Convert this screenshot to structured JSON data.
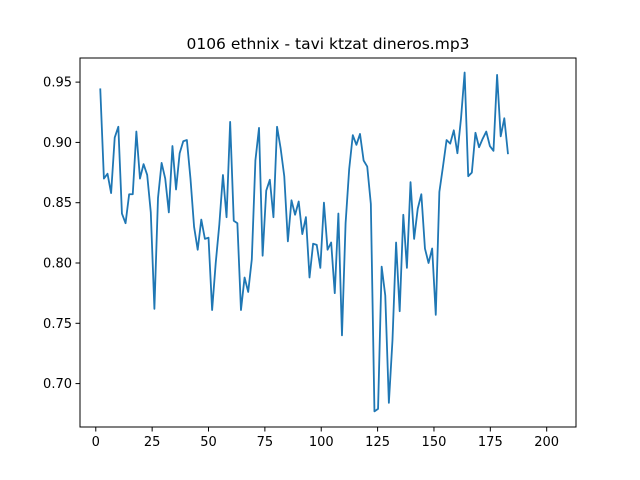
{
  "chart_data": {
    "type": "line",
    "title": "0106 ethnix - tavi ktzat dineros.mp3",
    "xlabel": "",
    "ylabel": "",
    "xlim": [
      -7,
      213
    ],
    "ylim": [
      0.664,
      0.97
    ],
    "grid": false,
    "x_ticks": [
      0,
      25,
      50,
      75,
      100,
      125,
      150,
      175,
      200
    ],
    "y_ticks": [
      0.7,
      0.75,
      0.8,
      0.85,
      0.9,
      0.95
    ],
    "x_tick_labels": [
      "0",
      "25",
      "50",
      "75",
      "100",
      "125",
      "150",
      "175",
      "200"
    ],
    "y_tick_labels": [
      "0.70",
      "0.75",
      "0.80",
      "0.85",
      "0.90",
      "0.95"
    ],
    "series": [
      {
        "color": "#1f77b4",
        "x_start": 2,
        "x_step": 1.6,
        "values": [
          0.944,
          0.87,
          0.874,
          0.858,
          0.904,
          0.913,
          0.841,
          0.833,
          0.857,
          0.857,
          0.909,
          0.87,
          0.882,
          0.873,
          0.842,
          0.762,
          0.854,
          0.883,
          0.87,
          0.842,
          0.897,
          0.861,
          0.891,
          0.901,
          0.902,
          0.87,
          0.83,
          0.811,
          0.836,
          0.82,
          0.821,
          0.761,
          0.8,
          0.832,
          0.873,
          0.838,
          0.917,
          0.835,
          0.833,
          0.761,
          0.788,
          0.776,
          0.803,
          0.885,
          0.912,
          0.806,
          0.86,
          0.869,
          0.838,
          0.913,
          0.895,
          0.872,
          0.818,
          0.852,
          0.84,
          0.851,
          0.824,
          0.838,
          0.788,
          0.816,
          0.815,
          0.796,
          0.85,
          0.811,
          0.817,
          0.775,
          0.841,
          0.74,
          0.833,
          0.878,
          0.906,
          0.898,
          0.907,
          0.885,
          0.88,
          0.849,
          0.677,
          0.679,
          0.797,
          0.773,
          0.684,
          0.736,
          0.817,
          0.76,
          0.84,
          0.796,
          0.867,
          0.82,
          0.845,
          0.857,
          0.812,
          0.8,
          0.812,
          0.757,
          0.859,
          0.88,
          0.902,
          0.899,
          0.91,
          0.891,
          0.92,
          0.958,
          0.872,
          0.875,
          0.908,
          0.896,
          0.903,
          0.909,
          0.897,
          0.893,
          0.956,
          0.905,
          0.92,
          0.891
        ]
      }
    ]
  }
}
